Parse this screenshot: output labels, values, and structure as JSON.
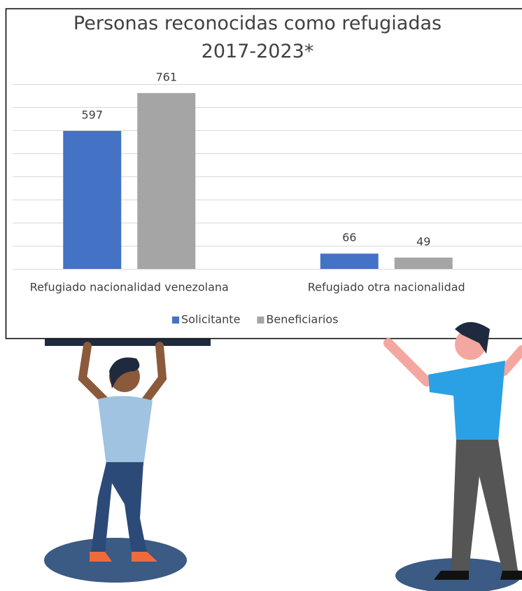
{
  "chart_data": {
    "type": "bar",
    "title": "Personas reconocidas como refugiadas 2017-2023*",
    "categories": [
      "Refugiado nacionalidad venezolana",
      "Refugiado otra nacionalidad"
    ],
    "series": [
      {
        "name": "Solicitante",
        "color": "#4472c4",
        "values": [
          597,
          66
        ]
      },
      {
        "name": "Beneficiarios",
        "color": "#a5a5a5",
        "values": [
          761,
          49
        ]
      }
    ],
    "ylim": [
      0,
      800
    ],
    "yticks": [
      0,
      100,
      200,
      300,
      400,
      500,
      600,
      700,
      800
    ],
    "grid": true,
    "legend": "bottom"
  }
}
